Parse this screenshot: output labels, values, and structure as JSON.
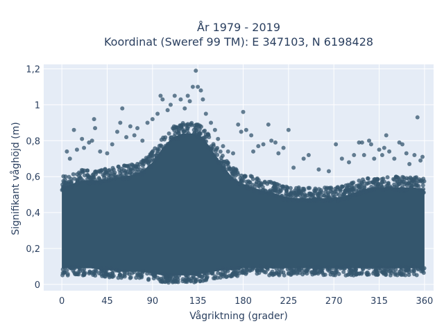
{
  "chart_data": {
    "type": "scatter",
    "title_line1": "År 1979 - 2019",
    "title_line2": "Koordinat (Sweref 99 TM): E 347103, N 6198428",
    "xlabel": "Vågriktning (grader)",
    "ylabel": "Signifikant våghöjd (m)",
    "xlim": [
      -18,
      369
    ],
    "ylim": [
      -0.035,
      1.225
    ],
    "x_ticks": [
      0,
      45,
      90,
      135,
      180,
      225,
      270,
      315,
      360
    ],
    "x_tick_labels": [
      "0",
      "45",
      "90",
      "135",
      "180",
      "225",
      "270",
      "315",
      "360"
    ],
    "y_ticks": [
      0,
      0.2,
      0.4,
      0.6,
      0.8,
      1.0,
      1.2
    ],
    "y_tick_labels": [
      "0",
      "0,2",
      "0,4",
      "0,6",
      "0,8",
      "1",
      "1,2"
    ],
    "grid": true,
    "marker_color": "#34566d",
    "background_color": "#e5ecf6",
    "dense_band": {
      "x": [
        0,
        10,
        20,
        30,
        40,
        50,
        60,
        70,
        80,
        90,
        100,
        110,
        120,
        130,
        140,
        150,
        160,
        170,
        180,
        190,
        200,
        210,
        220,
        230,
        240,
        250,
        260,
        270,
        280,
        290,
        300,
        310,
        320,
        330,
        340,
        350,
        360
      ],
      "y_low": [
        0.07,
        0.07,
        0.07,
        0.07,
        0.06,
        0.06,
        0.05,
        0.05,
        0.05,
        0.04,
        0.03,
        0.03,
        0.03,
        0.03,
        0.04,
        0.05,
        0.06,
        0.06,
        0.07,
        0.07,
        0.07,
        0.07,
        0.07,
        0.07,
        0.07,
        0.07,
        0.07,
        0.07,
        0.07,
        0.07,
        0.07,
        0.07,
        0.07,
        0.07,
        0.07,
        0.07,
        0.07
      ],
      "y_high": [
        0.58,
        0.6,
        0.62,
        0.62,
        0.62,
        0.63,
        0.64,
        0.65,
        0.67,
        0.72,
        0.8,
        0.86,
        0.88,
        0.88,
        0.86,
        0.78,
        0.7,
        0.63,
        0.6,
        0.58,
        0.56,
        0.55,
        0.53,
        0.52,
        0.52,
        0.52,
        0.52,
        0.52,
        0.53,
        0.55,
        0.57,
        0.58,
        0.58,
        0.58,
        0.58,
        0.58,
        0.57
      ]
    },
    "outliers": [
      {
        "x": 5,
        "y": 0.74
      },
      {
        "x": 8,
        "y": 0.7
      },
      {
        "x": 12,
        "y": 0.86
      },
      {
        "x": 15,
        "y": 0.75
      },
      {
        "x": 20,
        "y": 0.81
      },
      {
        "x": 22,
        "y": 0.76
      },
      {
        "x": 27,
        "y": 0.79
      },
      {
        "x": 30,
        "y": 0.8
      },
      {
        "x": 32,
        "y": 0.92
      },
      {
        "x": 33,
        "y": 0.87
      },
      {
        "x": 38,
        "y": 0.74
      },
      {
        "x": 45,
        "y": 0.73
      },
      {
        "x": 50,
        "y": 0.78
      },
      {
        "x": 55,
        "y": 0.85
      },
      {
        "x": 58,
        "y": 0.9
      },
      {
        "x": 60,
        "y": 0.98
      },
      {
        "x": 64,
        "y": 0.82
      },
      {
        "x": 68,
        "y": 0.88
      },
      {
        "x": 72,
        "y": 0.83
      },
      {
        "x": 75,
        "y": 0.87
      },
      {
        "x": 80,
        "y": 0.8
      },
      {
        "x": 85,
        "y": 0.9
      },
      {
        "x": 90,
        "y": 0.92
      },
      {
        "x": 95,
        "y": 0.95
      },
      {
        "x": 98,
        "y": 1.05
      },
      {
        "x": 100,
        "y": 1.03
      },
      {
        "x": 105,
        "y": 0.97
      },
      {
        "x": 108,
        "y": 1.0
      },
      {
        "x": 112,
        "y": 1.05
      },
      {
        "x": 118,
        "y": 1.03
      },
      {
        "x": 122,
        "y": 0.98
      },
      {
        "x": 125,
        "y": 1.05
      },
      {
        "x": 127,
        "y": 1.02
      },
      {
        "x": 130,
        "y": 1.1
      },
      {
        "x": 133,
        "y": 1.19
      },
      {
        "x": 135,
        "y": 1.1
      },
      {
        "x": 138,
        "y": 1.08
      },
      {
        "x": 140,
        "y": 1.03
      },
      {
        "x": 143,
        "y": 0.95
      },
      {
        "x": 148,
        "y": 0.9
      },
      {
        "x": 152,
        "y": 0.86
      },
      {
        "x": 155,
        "y": 0.81
      },
      {
        "x": 160,
        "y": 0.77
      },
      {
        "x": 165,
        "y": 0.74
      },
      {
        "x": 170,
        "y": 0.73
      },
      {
        "x": 175,
        "y": 0.89
      },
      {
        "x": 178,
        "y": 0.85
      },
      {
        "x": 180,
        "y": 0.96
      },
      {
        "x": 183,
        "y": 0.86
      },
      {
        "x": 188,
        "y": 0.83
      },
      {
        "x": 190,
        "y": 0.74
      },
      {
        "x": 195,
        "y": 0.77
      },
      {
        "x": 200,
        "y": 0.78
      },
      {
        "x": 205,
        "y": 0.89
      },
      {
        "x": 208,
        "y": 0.8
      },
      {
        "x": 212,
        "y": 0.79
      },
      {
        "x": 215,
        "y": 0.73
      },
      {
        "x": 220,
        "y": 0.76
      },
      {
        "x": 225,
        "y": 0.86
      },
      {
        "x": 230,
        "y": 0.65
      },
      {
        "x": 240,
        "y": 0.7
      },
      {
        "x": 245,
        "y": 0.72
      },
      {
        "x": 255,
        "y": 0.64
      },
      {
        "x": 265,
        "y": 0.63
      },
      {
        "x": 272,
        "y": 0.78
      },
      {
        "x": 278,
        "y": 0.7
      },
      {
        "x": 285,
        "y": 0.68
      },
      {
        "x": 290,
        "y": 0.72
      },
      {
        "x": 295,
        "y": 0.79
      },
      {
        "x": 298,
        "y": 0.79
      },
      {
        "x": 300,
        "y": 0.72
      },
      {
        "x": 305,
        "y": 0.8
      },
      {
        "x": 307,
        "y": 0.78
      },
      {
        "x": 310,
        "y": 0.7
      },
      {
        "x": 315,
        "y": 0.75
      },
      {
        "x": 318,
        "y": 0.72
      },
      {
        "x": 320,
        "y": 0.76
      },
      {
        "x": 322,
        "y": 0.83
      },
      {
        "x": 325,
        "y": 0.74
      },
      {
        "x": 330,
        "y": 0.7
      },
      {
        "x": 335,
        "y": 0.79
      },
      {
        "x": 338,
        "y": 0.78
      },
      {
        "x": 342,
        "y": 0.73
      },
      {
        "x": 345,
        "y": 0.67
      },
      {
        "x": 350,
        "y": 0.72
      },
      {
        "x": 353,
        "y": 0.93
      },
      {
        "x": 356,
        "y": 0.69
      },
      {
        "x": 358,
        "y": 0.71
      }
    ]
  }
}
